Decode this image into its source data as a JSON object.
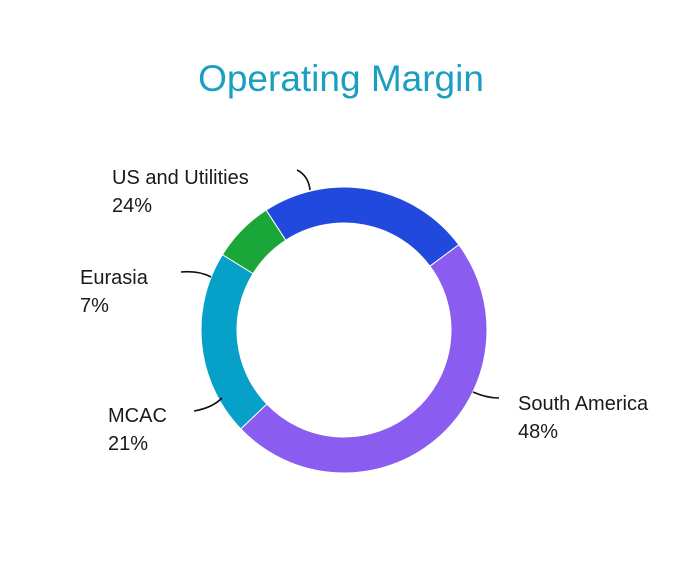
{
  "title": "Operating Margin",
  "chart_data": {
    "type": "pie",
    "donut": true,
    "title": "Operating Margin",
    "slices": [
      {
        "name": "US and Utilities",
        "value": 24,
        "value_label": "24%",
        "color": "#2149dd"
      },
      {
        "name": "South America",
        "value": 48,
        "value_label": "48%",
        "color": "#8b5cf0"
      },
      {
        "name": "MCAC",
        "value": 21,
        "value_label": "21%",
        "color": "#06a0c8"
      },
      {
        "name": "Eurasia",
        "value": 7,
        "value_label": "7%",
        "color": "#1aa638"
      }
    ]
  }
}
